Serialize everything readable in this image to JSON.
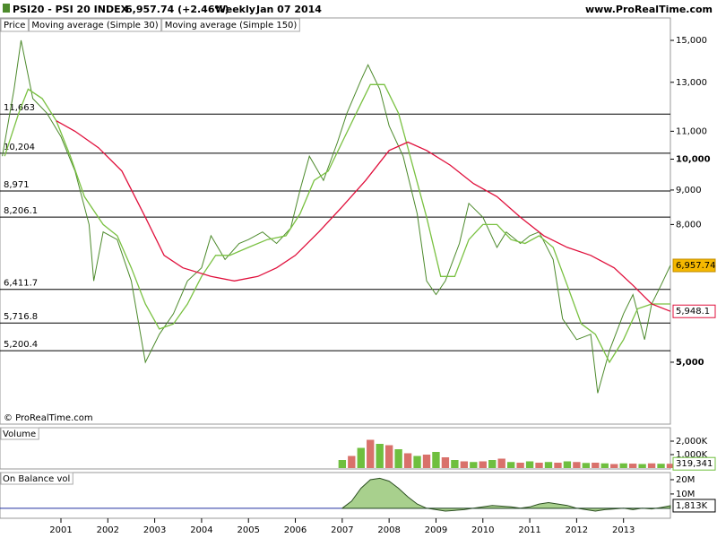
{
  "header": {
    "title": "PSI20 - PSI 20 INDEX",
    "quote": "6,957.74 (+2.46%)",
    "period": "Weekly",
    "date": "Jan 07 2014",
    "source": "www.ProRealTime.com",
    "copyright": "© ProRealTime.com"
  },
  "chart_data": [
    {
      "type": "line",
      "log_scale": true,
      "xlim": [
        1999.7,
        2014.0
      ],
      "ylim": [
        4060,
        16800
      ],
      "yticks": [
        {
          "value": 5000,
          "label": "5,000"
        },
        {
          "value": 8000,
          "label": "8,000"
        },
        {
          "value": 9000,
          "label": "9,000"
        },
        {
          "value": 10000,
          "label": "10,000"
        },
        {
          "value": 11000,
          "label": "11,000"
        },
        {
          "value": 13000,
          "label": "13,000"
        },
        {
          "value": 15000,
          "label": "15,000"
        }
      ],
      "levels": [
        {
          "value": 11663,
          "label": "11,663"
        },
        {
          "value": 10204,
          "label": "10,204"
        },
        {
          "value": 8971,
          "label": "8,971"
        },
        {
          "value": 8206.1,
          "label": "8,206.1"
        },
        {
          "value": 6411.7,
          "label": "6,411.7"
        },
        {
          "value": 5716.8,
          "label": "5,716.8"
        },
        {
          "value": 5200.4,
          "label": "5,200.4"
        }
      ],
      "series": [
        {
          "name": "Price",
          "color": "#4d8a2c",
          "last_label": "6,957.74",
          "x": [
            1999.75,
            2000.0,
            2000.15,
            2000.4,
            2000.7,
            2001.0,
            2001.3,
            2001.6,
            2001.7,
            2001.9,
            2002.2,
            2002.5,
            2002.8,
            2003.1,
            2003.4,
            2003.7,
            2004.0,
            2004.2,
            2004.5,
            2004.8,
            2005.0,
            2005.3,
            2005.6,
            2005.9,
            2006.1,
            2006.3,
            2006.6,
            2006.9,
            2007.1,
            2007.4,
            2007.55,
            2007.8,
            2008.0,
            2008.3,
            2008.6,
            2008.8,
            2009.0,
            2009.2,
            2009.5,
            2009.7,
            2010.0,
            2010.3,
            2010.5,
            2010.8,
            2011.0,
            2011.2,
            2011.5,
            2011.7,
            2012.0,
            2012.3,
            2012.45,
            2012.7,
            2013.0,
            2013.2,
            2013.45,
            2013.6,
            2013.8,
            2014.0
          ],
          "values": [
            10100,
            12700,
            15000,
            12300,
            11700,
            10800,
            9600,
            8000,
            6600,
            7800,
            7600,
            6600,
            5000,
            5500,
            5900,
            6600,
            6900,
            7700,
            7100,
            7500,
            7600,
            7800,
            7500,
            7900,
            9000,
            10100,
            9300,
            10600,
            11700,
            13100,
            13800,
            12700,
            11200,
            10100,
            8300,
            6600,
            6300,
            6600,
            7500,
            8600,
            8200,
            7400,
            7800,
            7500,
            7700,
            7800,
            7100,
            5800,
            5400,
            5500,
            4500,
            5200,
            5900,
            6300,
            5400,
            6100,
            6500,
            6957.74
          ]
        },
        {
          "name": "Moving average (Simple 30)",
          "color": "#7ac142",
          "x": [
            1999.8,
            2000.1,
            2000.3,
            2000.6,
            2000.9,
            2001.2,
            2001.5,
            2001.9,
            2002.2,
            2002.5,
            2002.8,
            2003.1,
            2003.4,
            2003.7,
            2004.0,
            2004.3,
            2004.6,
            2005.0,
            2005.4,
            2005.8,
            2006.1,
            2006.4,
            2006.7,
            2007.0,
            2007.3,
            2007.6,
            2007.9,
            2008.2,
            2008.5,
            2008.8,
            2009.1,
            2009.4,
            2009.7,
            2010.0,
            2010.3,
            2010.6,
            2010.9,
            2011.2,
            2011.5,
            2011.8,
            2012.1,
            2012.4,
            2012.7,
            2013.0,
            2013.3,
            2013.6,
            2014.0
          ],
          "values": [
            10100,
            11700,
            12700,
            12300,
            11400,
            10100,
            8800,
            8000,
            7700,
            6900,
            6100,
            5600,
            5700,
            6100,
            6700,
            7200,
            7200,
            7400,
            7600,
            7700,
            8300,
            9300,
            9600,
            10600,
            11700,
            12900,
            12900,
            11700,
            9800,
            8200,
            6700,
            6700,
            7600,
            8000,
            8000,
            7600,
            7500,
            7700,
            7400,
            6500,
            5700,
            5500,
            5000,
            5400,
            6000,
            6100,
            6100
          ]
        },
        {
          "name": "Moving average (Simple 150)",
          "color": "#e0103c",
          "last_label": "5,948.1",
          "x": [
            2000.9,
            2001.3,
            2001.8,
            2002.3,
            2002.8,
            2003.2,
            2003.6,
            2004.2,
            2004.7,
            2005.2,
            2005.6,
            2006.0,
            2006.5,
            2007.0,
            2007.5,
            2008.0,
            2008.4,
            2008.8,
            2009.3,
            2009.8,
            2010.3,
            2010.8,
            2011.3,
            2011.8,
            2012.3,
            2012.8,
            2013.2,
            2013.6,
            2014.0
          ],
          "values": [
            11400,
            11000,
            10400,
            9600,
            8200,
            7200,
            6900,
            6700,
            6600,
            6700,
            6900,
            7200,
            7800,
            8500,
            9300,
            10300,
            10600,
            10300,
            9800,
            9200,
            8800,
            8200,
            7700,
            7400,
            7200,
            6900,
            6500,
            6100,
            5948.1
          ]
        }
      ]
    },
    {
      "type": "bar",
      "name": "Volume",
      "color": "#6fbf3f",
      "xlim": [
        1999.7,
        2014.0
      ],
      "ylim": [
        0,
        3000000
      ],
      "yticks": [
        {
          "value": 1000000,
          "label": "1,000K"
        },
        {
          "value": 2000000,
          "label": "2,000K"
        }
      ],
      "last_label": "319,341",
      "x": [
        2007.0,
        2007.2,
        2007.4,
        2007.6,
        2007.8,
        2008.0,
        2008.2,
        2008.4,
        2008.6,
        2008.8,
        2009.0,
        2009.2,
        2009.4,
        2009.6,
        2009.8,
        2010.0,
        2010.2,
        2010.4,
        2010.6,
        2010.8,
        2011.0,
        2011.2,
        2011.4,
        2011.6,
        2011.8,
        2012.0,
        2012.2,
        2012.4,
        2012.6,
        2012.8,
        2013.0,
        2013.2,
        2013.4,
        2013.6,
        2013.8,
        2014.0
      ],
      "values": [
        600000,
        900000,
        1500000,
        2100000,
        1800000,
        1700000,
        1400000,
        1100000,
        900000,
        1000000,
        1200000,
        800000,
        600000,
        500000,
        450000,
        500000,
        600000,
        700000,
        450000,
        400000,
        500000,
        400000,
        450000,
        400000,
        500000,
        450000,
        380000,
        400000,
        350000,
        300000,
        350000,
        330000,
        300000,
        350000,
        320000,
        319341
      ]
    },
    {
      "type": "area",
      "name": "On Balance vol",
      "color": "#2c4f22",
      "xlim": [
        1999.7,
        2014.0
      ],
      "ylim": [
        -7000000,
        25000000
      ],
      "yticks": [
        {
          "value": 10000000,
          "label": "10M"
        },
        {
          "value": 20000000,
          "label": "20M"
        }
      ],
      "xticks": [
        2001,
        2002,
        2003,
        2004,
        2005,
        2006,
        2007,
        2008,
        2009,
        2010,
        2011,
        2012,
        2013
      ],
      "last_label": "1,813K",
      "x": [
        2007.0,
        2007.2,
        2007.4,
        2007.6,
        2007.8,
        2008.0,
        2008.2,
        2008.4,
        2008.6,
        2008.8,
        2009.0,
        2009.2,
        2009.4,
        2009.6,
        2009.8,
        2010.0,
        2010.2,
        2010.4,
        2010.6,
        2010.8,
        2011.0,
        2011.2,
        2011.4,
        2011.6,
        2011.8,
        2012.0,
        2012.2,
        2012.4,
        2012.6,
        2012.8,
        2013.0,
        2013.2,
        2013.4,
        2013.6,
        2013.8,
        2014.0
      ],
      "values": [
        0,
        5000000,
        14000000,
        20000000,
        21000000,
        19000000,
        14000000,
        8000000,
        3000000,
        0,
        -1000000,
        -2000000,
        -1500000,
        -1000000,
        0,
        1000000,
        2000000,
        1500000,
        1000000,
        0,
        1000000,
        3000000,
        4000000,
        3000000,
        2000000,
        0,
        -1000000,
        -2000000,
        -1000000,
        -500000,
        0,
        -1000000,
        0,
        -500000,
        500000,
        1813000
      ]
    }
  ]
}
